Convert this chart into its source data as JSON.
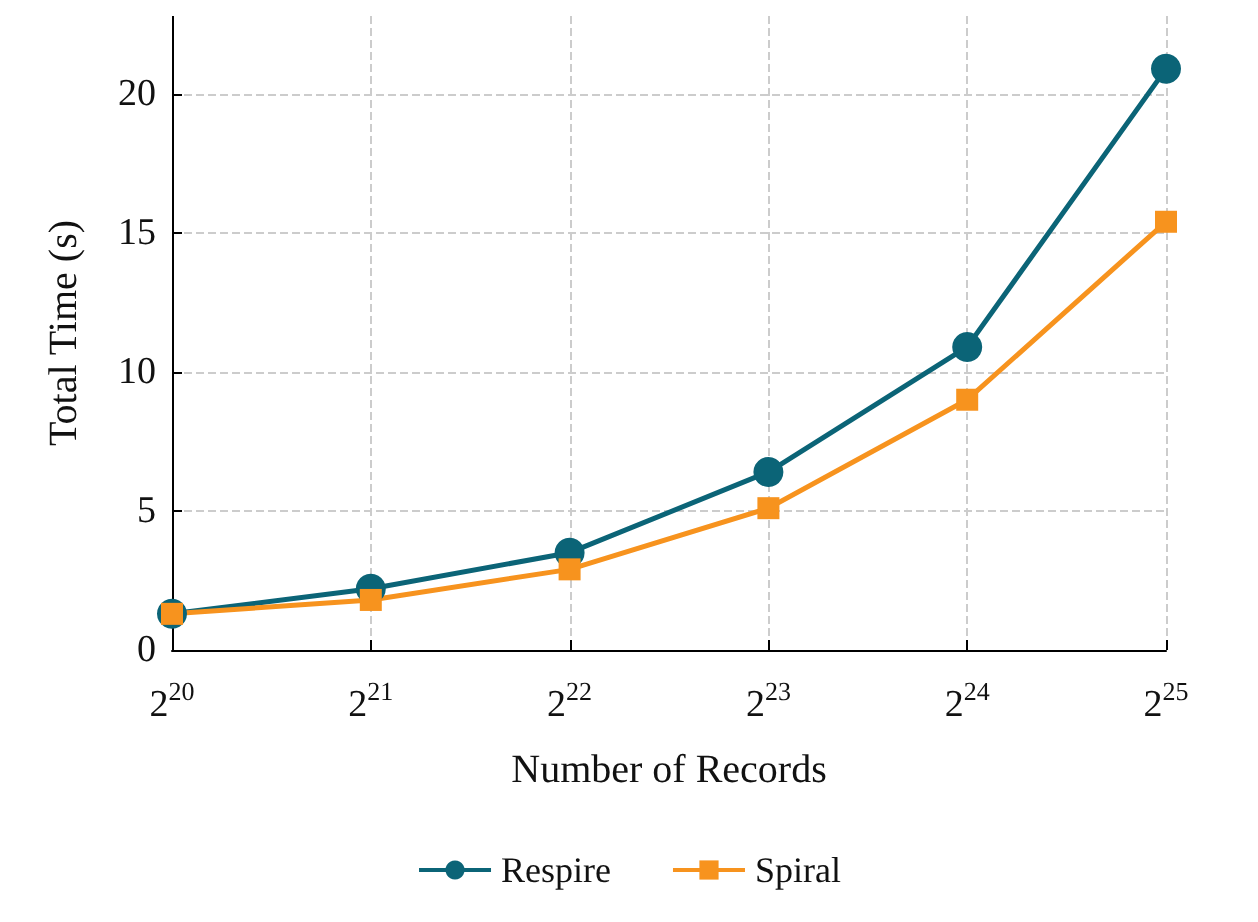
{
  "chart_data": {
    "type": "line",
    "xlabel": "Number of Records",
    "ylabel": "Total Time (s)",
    "categories": [
      "2$^{20}$",
      "2$^{21}$",
      "2$^{22}$",
      "2$^{23}$",
      "2$^{24}$",
      "2$^{25}$"
    ],
    "series": [
      {
        "name": "Respire",
        "color": "#0b6477",
        "marker": "circle",
        "values": [
          1.3,
          2.2,
          3.5,
          6.4,
          10.9,
          20.9
        ]
      },
      {
        "name": "Spiral",
        "color": "#f7931e",
        "marker": "square",
        "values": [
          1.3,
          1.8,
          2.9,
          5.1,
          9.0,
          15.4
        ]
      }
    ],
    "ylim": [
      0,
      22.8
    ],
    "yticks": [
      0,
      5,
      10,
      15,
      20
    ],
    "grid": true,
    "legend": "bottom",
    "line_style": "solid"
  }
}
